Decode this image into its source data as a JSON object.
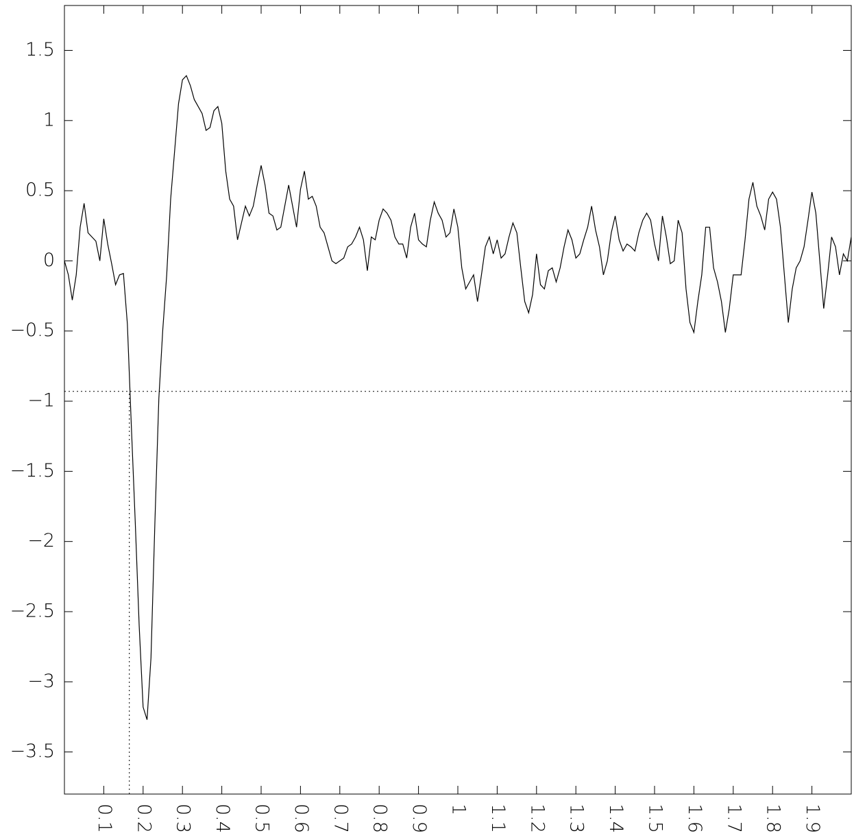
{
  "chart_data": {
    "type": "line",
    "x": [
      0,
      0.01,
      0.02,
      0.03,
      0.04,
      0.05,
      0.06,
      0.07,
      0.08,
      0.09,
      0.1,
      0.11,
      0.12,
      0.13,
      0.14,
      0.15,
      0.16,
      0.17,
      0.18,
      0.19,
      0.2,
      0.21,
      0.22,
      0.23,
      0.24,
      0.25,
      0.26,
      0.27,
      0.28,
      0.29,
      0.3,
      0.31,
      0.32,
      0.33,
      0.34,
      0.35,
      0.36,
      0.37,
      0.38,
      0.39,
      0.4,
      0.41,
      0.42,
      0.43,
      0.44,
      0.45,
      0.46,
      0.47,
      0.48,
      0.49,
      0.5,
      0.51,
      0.52,
      0.53,
      0.54,
      0.55,
      0.56,
      0.57,
      0.58,
      0.59,
      0.6,
      0.61,
      0.62,
      0.63,
      0.64,
      0.65,
      0.66,
      0.67,
      0.68,
      0.69,
      0.7,
      0.71,
      0.72,
      0.73,
      0.74,
      0.75,
      0.76,
      0.77,
      0.78,
      0.79,
      0.8,
      0.81,
      0.82,
      0.83,
      0.84,
      0.85,
      0.86,
      0.87,
      0.88,
      0.89,
      0.9,
      0.91,
      0.92,
      0.93,
      0.94,
      0.95,
      0.96,
      0.97,
      0.98,
      0.99,
      1,
      1.01,
      1.02,
      1.03,
      1.04,
      1.05,
      1.06,
      1.07,
      1.08,
      1.09,
      1.1,
      1.11,
      1.12,
      1.13,
      1.14,
      1.15,
      1.16,
      1.17,
      1.18,
      1.19,
      1.2,
      1.21,
      1.22,
      1.23,
      1.24,
      1.25,
      1.26,
      1.27,
      1.28,
      1.29,
      1.3,
      1.31,
      1.32,
      1.33,
      1.34,
      1.35,
      1.36,
      1.37,
      1.38,
      1.39,
      1.4,
      1.41,
      1.42,
      1.43,
      1.44,
      1.45,
      1.46,
      1.47,
      1.48,
      1.49,
      1.5,
      1.51,
      1.52,
      1.53,
      1.54,
      1.55,
      1.56,
      1.57,
      1.58,
      1.59,
      1.6,
      1.61,
      1.62,
      1.63,
      1.64,
      1.65,
      1.66,
      1.67,
      1.68,
      1.69,
      1.7,
      1.71,
      1.72,
      1.73,
      1.74,
      1.75,
      1.76,
      1.77,
      1.78,
      1.79,
      1.8,
      1.81,
      1.82,
      1.83,
      1.84,
      1.85,
      1.86,
      1.87,
      1.88,
      1.89,
      1.9,
      1.91,
      1.92,
      1.93,
      1.94,
      1.95,
      1.96,
      1.97,
      1.98,
      1.99,
      2
    ],
    "values": [
      0,
      -0.1,
      -0.28,
      -0.1,
      0.24,
      0.41,
      0.2,
      0.17,
      0.14,
      0,
      0.3,
      0.12,
      -0.02,
      -0.17,
      -0.1,
      -0.09,
      -0.45,
      -1.17,
      -1.86,
      -2.6,
      -3.18,
      -3.27,
      -2.83,
      -1.86,
      -0.98,
      -0.49,
      -0.1,
      0.44,
      0.78,
      1.12,
      1.29,
      1.32,
      1.25,
      1.15,
      1.1,
      1.05,
      0.93,
      0.95,
      1.07,
      1.1,
      0.98,
      0.64,
      0.44,
      0.39,
      0.15,
      0.27,
      0.39,
      0.32,
      0.39,
      0.54,
      0.68,
      0.54,
      0.34,
      0.32,
      0.22,
      0.24,
      0.39,
      0.54,
      0.39,
      0.24,
      0.51,
      0.64,
      0.44,
      0.46,
      0.39,
      0.24,
      0.2,
      0.1,
      0,
      -0.02,
      0,
      0.02,
      0.1,
      0.12,
      0.17,
      0.24,
      0.15,
      -0.07,
      0.17,
      0.15,
      0.29,
      0.37,
      0.34,
      0.29,
      0.17,
      0.12,
      0.12,
      0.02,
      0.24,
      0.34,
      0.15,
      0.12,
      0.1,
      0.29,
      0.42,
      0.34,
      0.29,
      0.17,
      0.2,
      0.37,
      0.24,
      -0.05,
      -0.2,
      -0.15,
      -0.1,
      -0.29,
      -0.1,
      0.1,
      0.17,
      0.05,
      0.15,
      0.02,
      0.05,
      0.17,
      0.27,
      0.2,
      -0.05,
      -0.29,
      -0.37,
      -0.24,
      0.05,
      -0.17,
      -0.2,
      -0.07,
      -0.05,
      -0.15,
      -0.05,
      0.1,
      0.22,
      0.15,
      0.02,
      0.05,
      0.15,
      0.24,
      0.39,
      0.22,
      0.1,
      -0.1,
      0,
      0.2,
      0.32,
      0.15,
      0.07,
      0.12,
      0.1,
      0.07,
      0.2,
      0.29,
      0.34,
      0.29,
      0.12,
      0,
      0.32,
      0.17,
      -0.02,
      0,
      0.29,
      0.2,
      -0.2,
      -0.44,
      -0.51,
      -0.29,
      -0.1,
      0.24,
      0.24,
      -0.05,
      -0.15,
      -0.29,
      -0.51,
      -0.34,
      -0.1,
      -0.1,
      -0.1,
      0.15,
      0.44,
      0.56,
      0.39,
      0.32,
      0.22,
      0.44,
      0.49,
      0.44,
      0.24,
      -0.1,
      -0.44,
      -0.2,
      -0.05,
      0,
      0.1,
      0.29,
      0.49,
      0.34,
      0,
      -0.34,
      -0.1,
      0.17,
      0.1,
      -0.1,
      0.05,
      0,
      0.17
    ],
    "color": "#000000",
    "xlim": [
      0,
      2
    ],
    "ylim": [
      -3.8,
      1.82
    ],
    "xticks": [
      0.1,
      0.2,
      0.3,
      0.4,
      0.5,
      0.6,
      0.7,
      0.8,
      0.9,
      1,
      1.1,
      1.2,
      1.3,
      1.4,
      1.5,
      1.6,
      1.7,
      1.8,
      1.9
    ],
    "yticks": [
      {
        "value": -3.5,
        "label": "−3.5"
      },
      {
        "value": -3,
        "label": "−3"
      },
      {
        "value": -2.5,
        "label": "−2.5"
      },
      {
        "value": -2,
        "label": "−2"
      },
      {
        "value": -1.5,
        "label": "−1.5"
      },
      {
        "value": -1,
        "label": "−1"
      },
      {
        "value": -0.5,
        "label": "−0.5"
      },
      0,
      0.5,
      1,
      1.5
    ],
    "hline": -0.93,
    "vline": 0.165,
    "grid": false
  }
}
